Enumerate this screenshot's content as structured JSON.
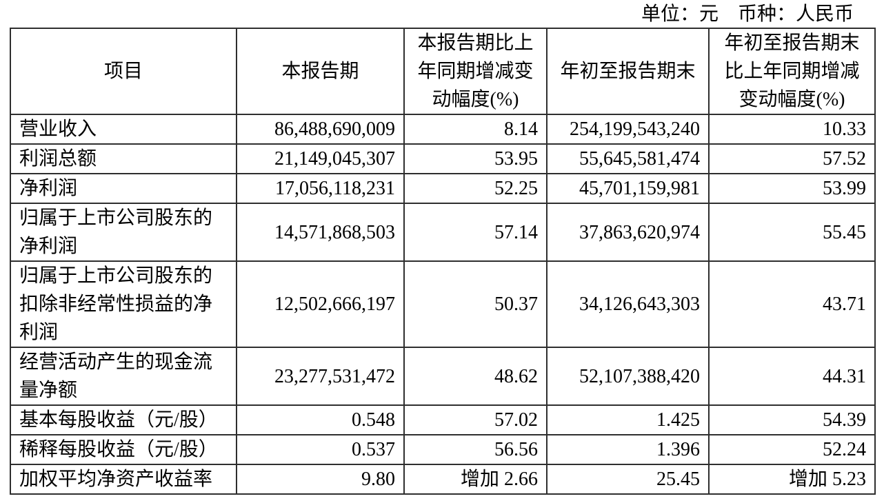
{
  "meta": {
    "unit_note": "单位：元　币种：人民币"
  },
  "table": {
    "headers": [
      "项目",
      "本报告期",
      "本报告期比上\n年同期增减变\n动幅度(%)",
      "年初至报告期末",
      "年初至报告期末\n比上年同期增减\n变动幅度(%)"
    ],
    "rows": [
      [
        "营业收入",
        "86,488,690,009",
        "8.14",
        "254,199,543,240",
        "10.33"
      ],
      [
        "利润总额",
        "21,149,045,307",
        "53.95",
        "55,645,581,474",
        "57.52"
      ],
      [
        "净利润",
        "17,056,118,231",
        "52.25",
        "45,701,159,981",
        "53.99"
      ],
      [
        "归属于上市公司股东的\n净利润",
        "14,571,868,503",
        "57.14",
        "37,863,620,974",
        "55.45"
      ],
      [
        "归属于上市公司股东的\n扣除非经常性损益的净\n利润",
        "12,502,666,197",
        "50.37",
        "34,126,643,303",
        "43.71"
      ],
      [
        "经营活动产生的现金流\n量净额",
        "23,277,531,472",
        "48.62",
        "52,107,388,420",
        "44.31"
      ],
      [
        "基本每股收益（元/股）",
        "0.548",
        "57.02",
        "1.425",
        "54.39"
      ],
      [
        "稀释每股收益（元/股）",
        "0.537",
        "56.56",
        "1.396",
        "52.24"
      ],
      [
        "加权平均净资产收益率",
        "9.80",
        "增加 2.66",
        "25.45",
        "增加 5.23"
      ]
    ]
  },
  "colors": {
    "border": "#2e2e2e",
    "text": "#000000",
    "background": "#ffffff"
  }
}
